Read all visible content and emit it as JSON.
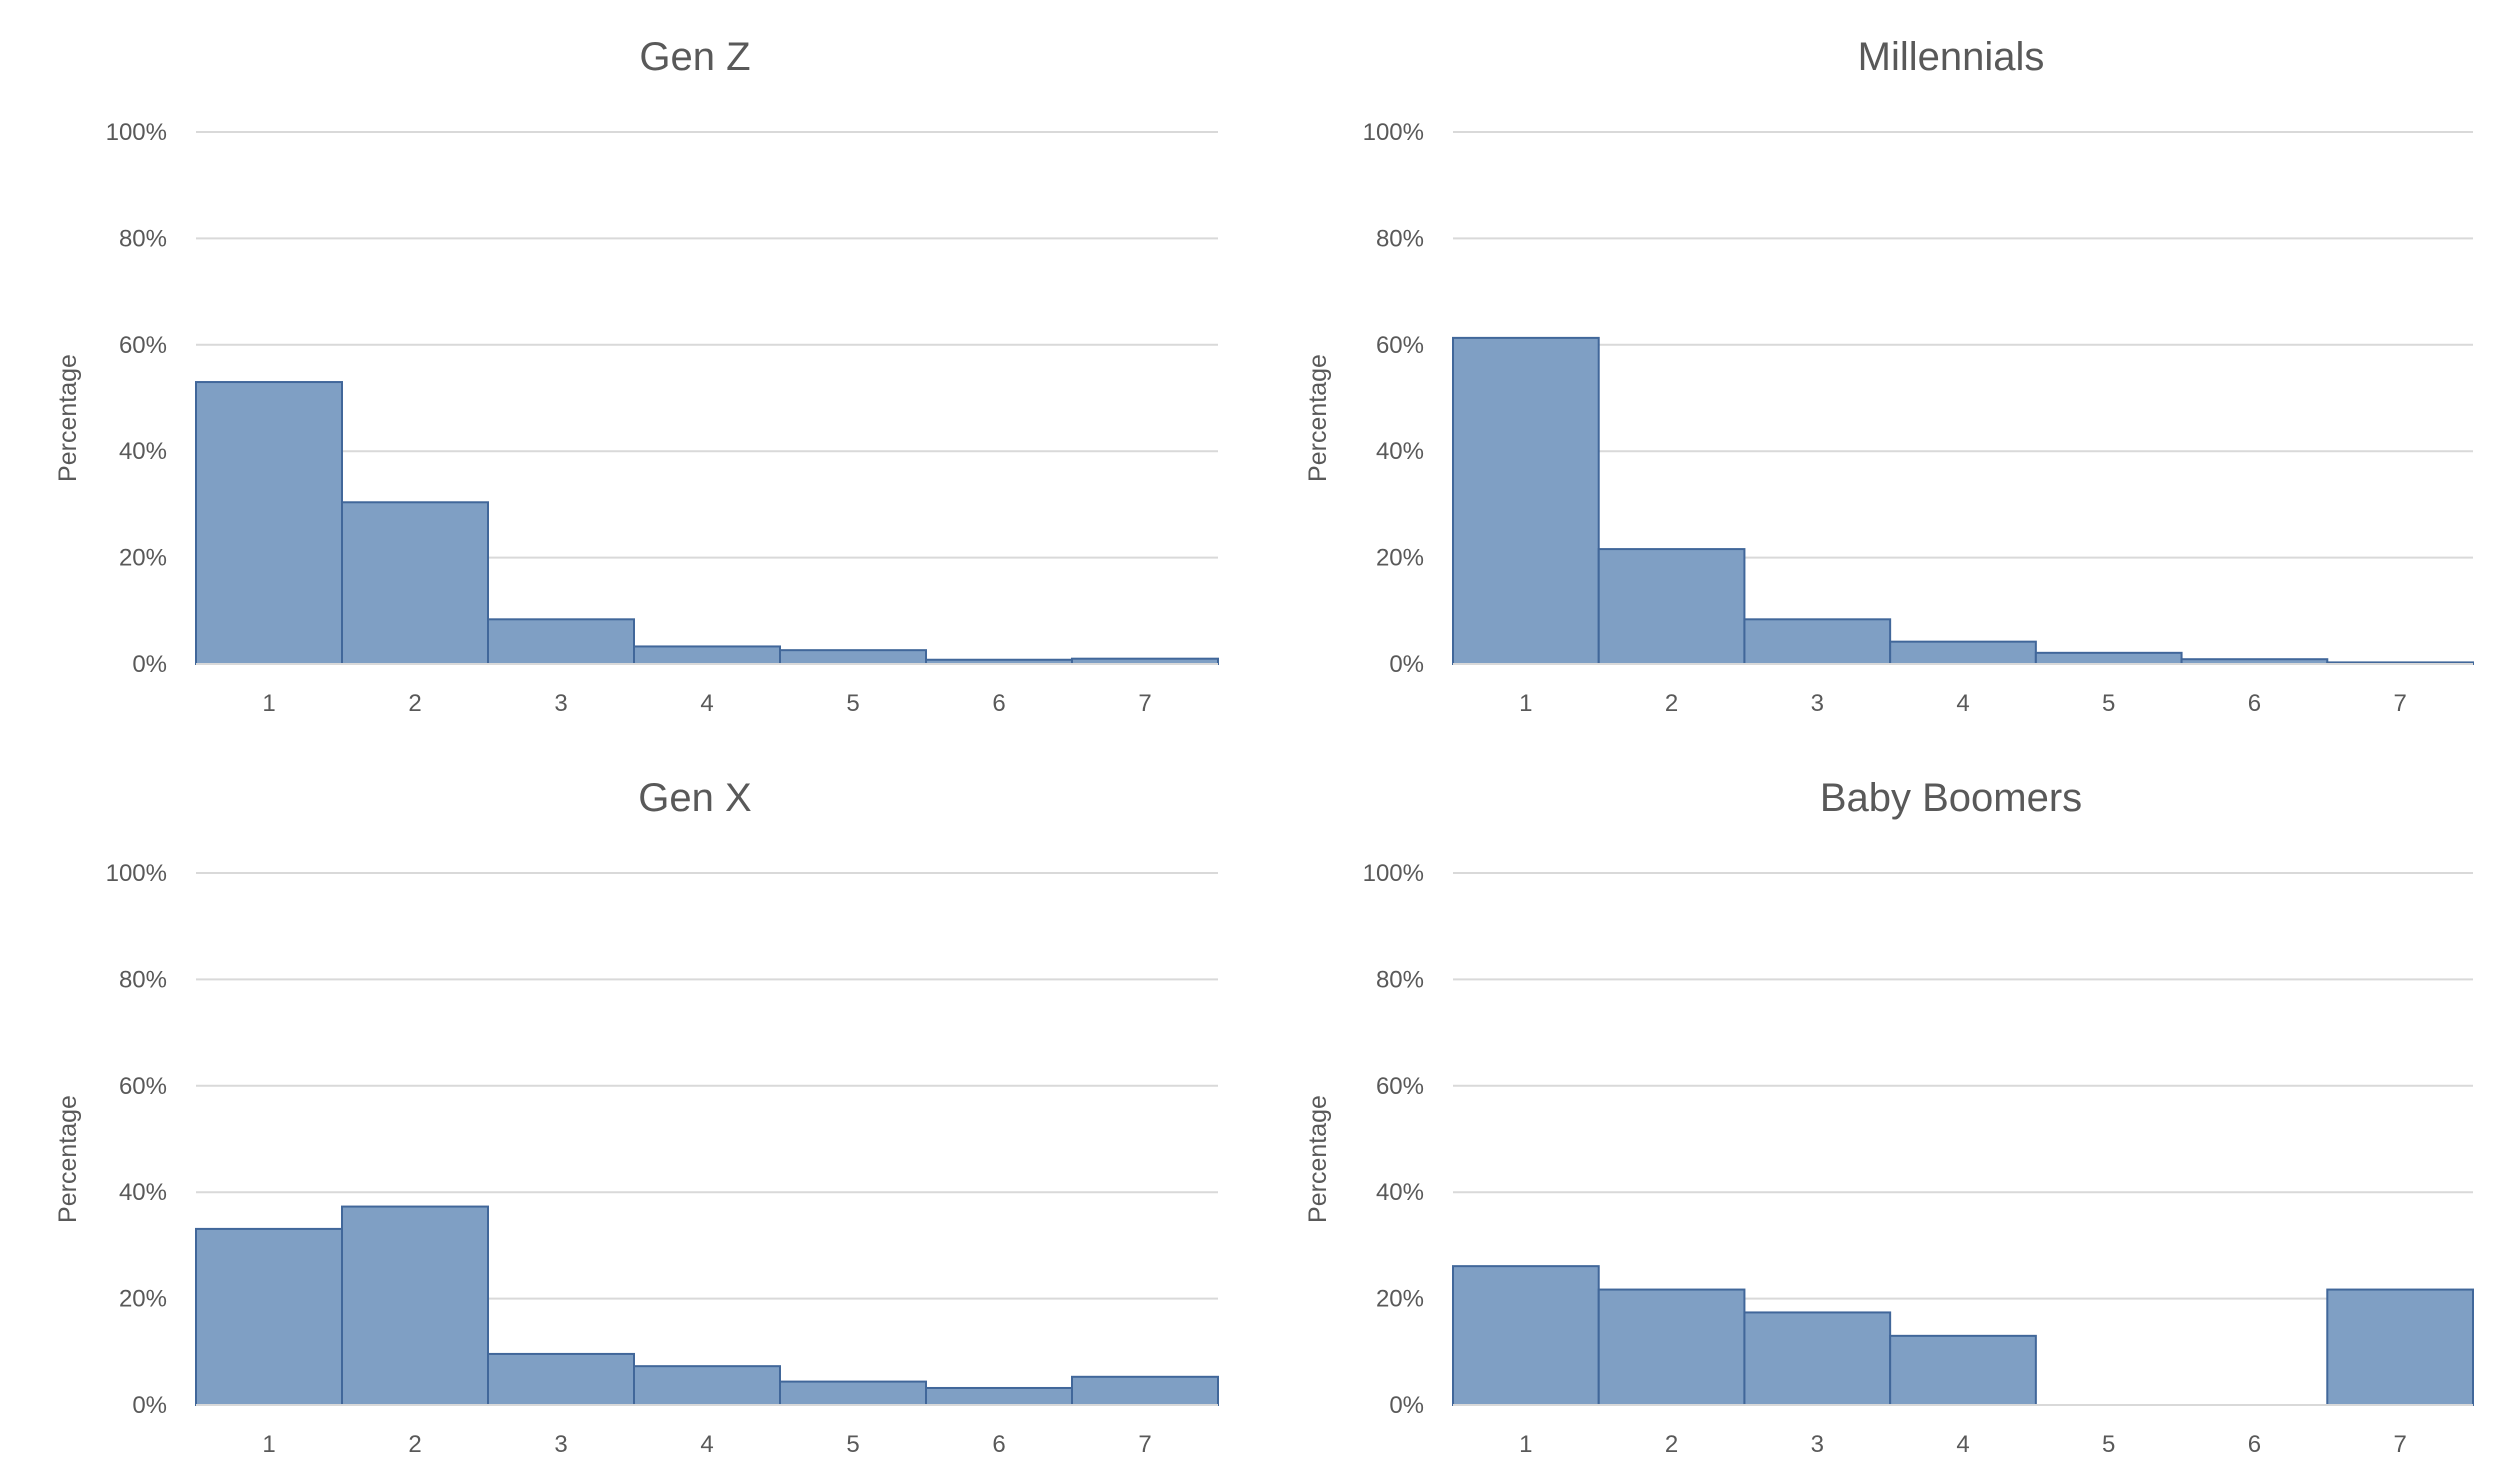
{
  "chart_data": [
    {
      "type": "bar",
      "title": "Gen Z",
      "xlabel": "",
      "ylabel": "Percentage",
      "categories": [
        "1",
        "2",
        "3",
        "4",
        "5",
        "6",
        "7"
      ],
      "values": [
        53.0,
        30.4,
        8.4,
        3.3,
        2.6,
        0.8,
        1.0
      ],
      "ylim": [
        0,
        100
      ],
      "yticks": [
        "0%",
        "20%",
        "40%",
        "60%",
        "80%",
        "100%"
      ],
      "grid": true,
      "color": "#7f9fc4",
      "edge_color": "#41679a"
    },
    {
      "type": "bar",
      "title": "Millennials",
      "xlabel": "",
      "ylabel": "Percentage",
      "categories": [
        "1",
        "2",
        "3",
        "4",
        "5",
        "6",
        "7"
      ],
      "values": [
        61.3,
        21.6,
        8.4,
        4.2,
        2.1,
        0.9,
        0.3
      ],
      "ylim": [
        0,
        100
      ],
      "yticks": [
        "0%",
        "20%",
        "40%",
        "60%",
        "80%",
        "100%"
      ],
      "grid": true,
      "color": "#7f9fc4",
      "edge_color": "#41679a"
    },
    {
      "type": "bar",
      "title": "Gen X",
      "xlabel": "",
      "ylabel": "Percentage",
      "categories": [
        "1",
        "2",
        "3",
        "4",
        "5",
        "6",
        "7"
      ],
      "values": [
        33.1,
        37.3,
        9.6,
        7.3,
        4.4,
        3.2,
        5.3
      ],
      "ylim": [
        0,
        100
      ],
      "yticks": [
        "0%",
        "20%",
        "40%",
        "60%",
        "80%",
        "100%"
      ],
      "grid": true,
      "color": "#7f9fc4",
      "edge_color": "#41679a"
    },
    {
      "type": "bar",
      "title": "Baby Boomers",
      "xlabel": "",
      "ylabel": "Percentage",
      "categories": [
        "1",
        "2",
        "3",
        "4",
        "5",
        "6",
        "7"
      ],
      "values": [
        26.1,
        21.7,
        17.4,
        13.0,
        0,
        0,
        21.7
      ],
      "ylim": [
        0,
        100
      ],
      "yticks": [
        "0%",
        "20%",
        "40%",
        "60%",
        "80%",
        "100%"
      ],
      "grid": true,
      "color": "#7f9fc4",
      "edge_color": "#41679a"
    }
  ]
}
